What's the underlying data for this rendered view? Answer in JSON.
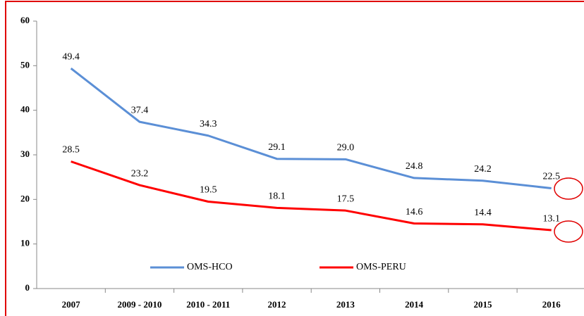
{
  "chart_data": {
    "type": "line",
    "categories": [
      "2007",
      "2009 - 2010",
      "2010 - 2011",
      "2012",
      "2013",
      "2014",
      "2015",
      "2016"
    ],
    "series": [
      {
        "name": "OMS-HCO",
        "color": "#5b8fd6",
        "values": [
          49.4,
          37.4,
          34.3,
          29.1,
          29.0,
          24.8,
          24.2,
          22.5
        ],
        "value_labels": [
          "49.4",
          "37.4",
          "34.3",
          "29.1",
          "29.0",
          "24.8",
          "24.2",
          "22.5"
        ]
      },
      {
        "name": "OMS-PERU",
        "color": "#ff0000",
        "values": [
          28.5,
          23.2,
          19.5,
          18.1,
          17.5,
          14.6,
          14.4,
          13.1
        ],
        "value_labels": [
          "28.5",
          "23.2",
          "19.5",
          "18.1",
          "17.5",
          "14.6",
          "14.4",
          "13.1"
        ]
      }
    ],
    "ylim": [
      0,
      60
    ],
    "yticks": [
      0,
      10,
      20,
      30,
      40,
      50,
      60
    ]
  }
}
